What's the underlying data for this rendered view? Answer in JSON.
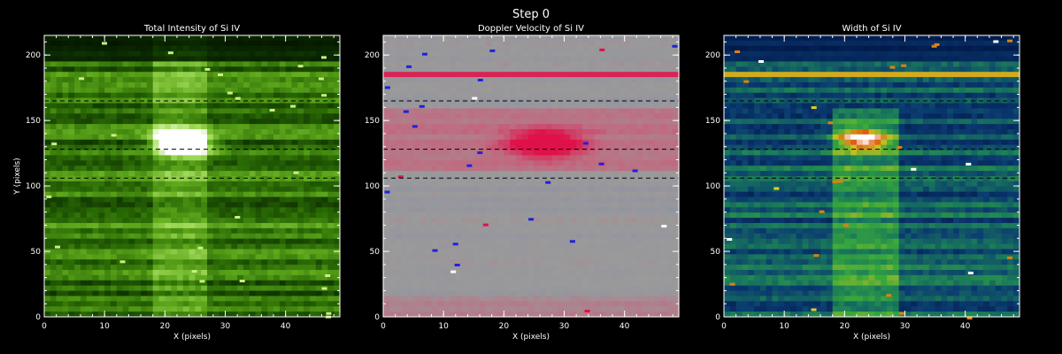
{
  "figure": {
    "title": "Step 0"
  },
  "chart_data": [
    {
      "type": "heatmap",
      "title": "Total Intensity of Si IV",
      "xlabel": "X (pixels)",
      "ylabel": "Y (pixels)",
      "xlim": [
        0,
        49
      ],
      "ylim": [
        0,
        215
      ],
      "xticks": [
        0,
        10,
        20,
        30,
        40
      ],
      "yticks": [
        0,
        50,
        100,
        150,
        200
      ],
      "colormap": "green",
      "colors": [
        "#000000",
        "#0a2a00",
        "#2a6a05",
        "#5fa81c",
        "#a8e060",
        "#ffffff"
      ],
      "reference_lines_y": [
        165,
        128,
        106
      ],
      "features": [
        {
          "x": 21,
          "y": 134,
          "value": 1.0,
          "note": "bright core"
        },
        {
          "x": 25,
          "y": 132,
          "value": 0.85
        }
      ]
    },
    {
      "type": "heatmap",
      "title": "Doppler Velocity of Si IV",
      "xlabel": "X (pixels)",
      "ylabel": "",
      "xlim": [
        0,
        49
      ],
      "ylim": [
        0,
        215
      ],
      "xticks": [
        0,
        10,
        20,
        30,
        40
      ],
      "yticks": [
        0,
        50,
        100,
        150,
        200
      ],
      "colormap": "red-grey-blue",
      "colors": [
        "#1a1acc",
        "#8a8aa8",
        "#9a9a9a",
        "#c06a80",
        "#e0104a"
      ],
      "reference_lines_y": [
        165,
        128,
        106
      ],
      "features": [
        {
          "x": 27,
          "y": 132,
          "value": 0.95,
          "note": "strong redshift"
        },
        {
          "x": 0,
          "y": 186,
          "value": 0.9,
          "note": "red streak"
        }
      ]
    },
    {
      "type": "heatmap",
      "title": "Width of Si IV",
      "xlabel": "X (pixels)",
      "ylabel": "",
      "xlim": [
        0,
        49
      ],
      "ylim": [
        0,
        215
      ],
      "xticks": [
        0,
        10,
        20,
        30,
        40
      ],
      "yticks": [
        0,
        50,
        100,
        150,
        200
      ],
      "colormap": "rainbow",
      "colors": [
        "#001040",
        "#0a3a70",
        "#1a7a5a",
        "#3aaa3a",
        "#d0c020",
        "#e05010",
        "#ffffff"
      ],
      "reference_lines_y": [
        165,
        128,
        106
      ],
      "features": [
        {
          "x": 23,
          "y": 136,
          "value": 0.95,
          "note": "broad lines"
        },
        {
          "x": 0,
          "y": 186,
          "value": 0.7,
          "note": "streak"
        }
      ]
    }
  ]
}
